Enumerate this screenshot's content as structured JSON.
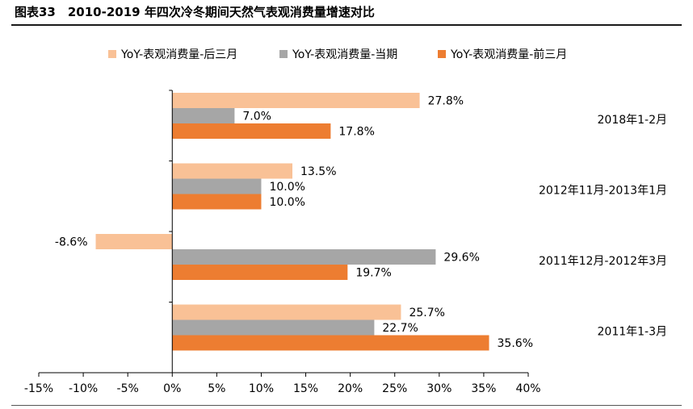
{
  "figure": {
    "title": "图表33　2010-2019 年四次冷冬期间天然气表观消费量增速对比"
  },
  "chart_data": {
    "type": "bar",
    "orientation": "horizontal",
    "categories": [
      "2018年1-2月",
      "2012年11月-2013年1月",
      "2011年12月-2012年3月",
      "2011年1-3月"
    ],
    "series": [
      {
        "name": "YoY-表观消费量-后三月",
        "color": "#F9C196",
        "values": [
          27.8,
          13.5,
          -8.6,
          25.7
        ],
        "labels": [
          "27.8%",
          "13.5%",
          "-8.6%",
          "25.7%"
        ]
      },
      {
        "name": "YoY-表观消费量-当期",
        "color": "#A6A6A6",
        "values": [
          7.0,
          10.0,
          29.6,
          22.7
        ],
        "labels": [
          "7.0%",
          "10.0%",
          "29.6%",
          "22.7%"
        ]
      },
      {
        "name": "YoY-表观消费量-前三月",
        "color": "#ED7D31",
        "values": [
          17.8,
          10.0,
          19.7,
          35.6
        ],
        "labels": [
          "17.8%",
          "10.0%",
          "19.7%",
          "35.6%"
        ]
      }
    ],
    "xlim": [
      -15,
      40
    ],
    "xticks": [
      -15,
      -10,
      -5,
      0,
      5,
      10,
      15,
      20,
      25,
      30,
      35,
      40
    ],
    "xtick_labels": [
      "-15%",
      "-10%",
      "-5%",
      "0%",
      "5%",
      "10%",
      "15%",
      "20%",
      "25%",
      "30%",
      "35%",
      "40%"
    ],
    "grid": false,
    "legend_position": "top"
  }
}
